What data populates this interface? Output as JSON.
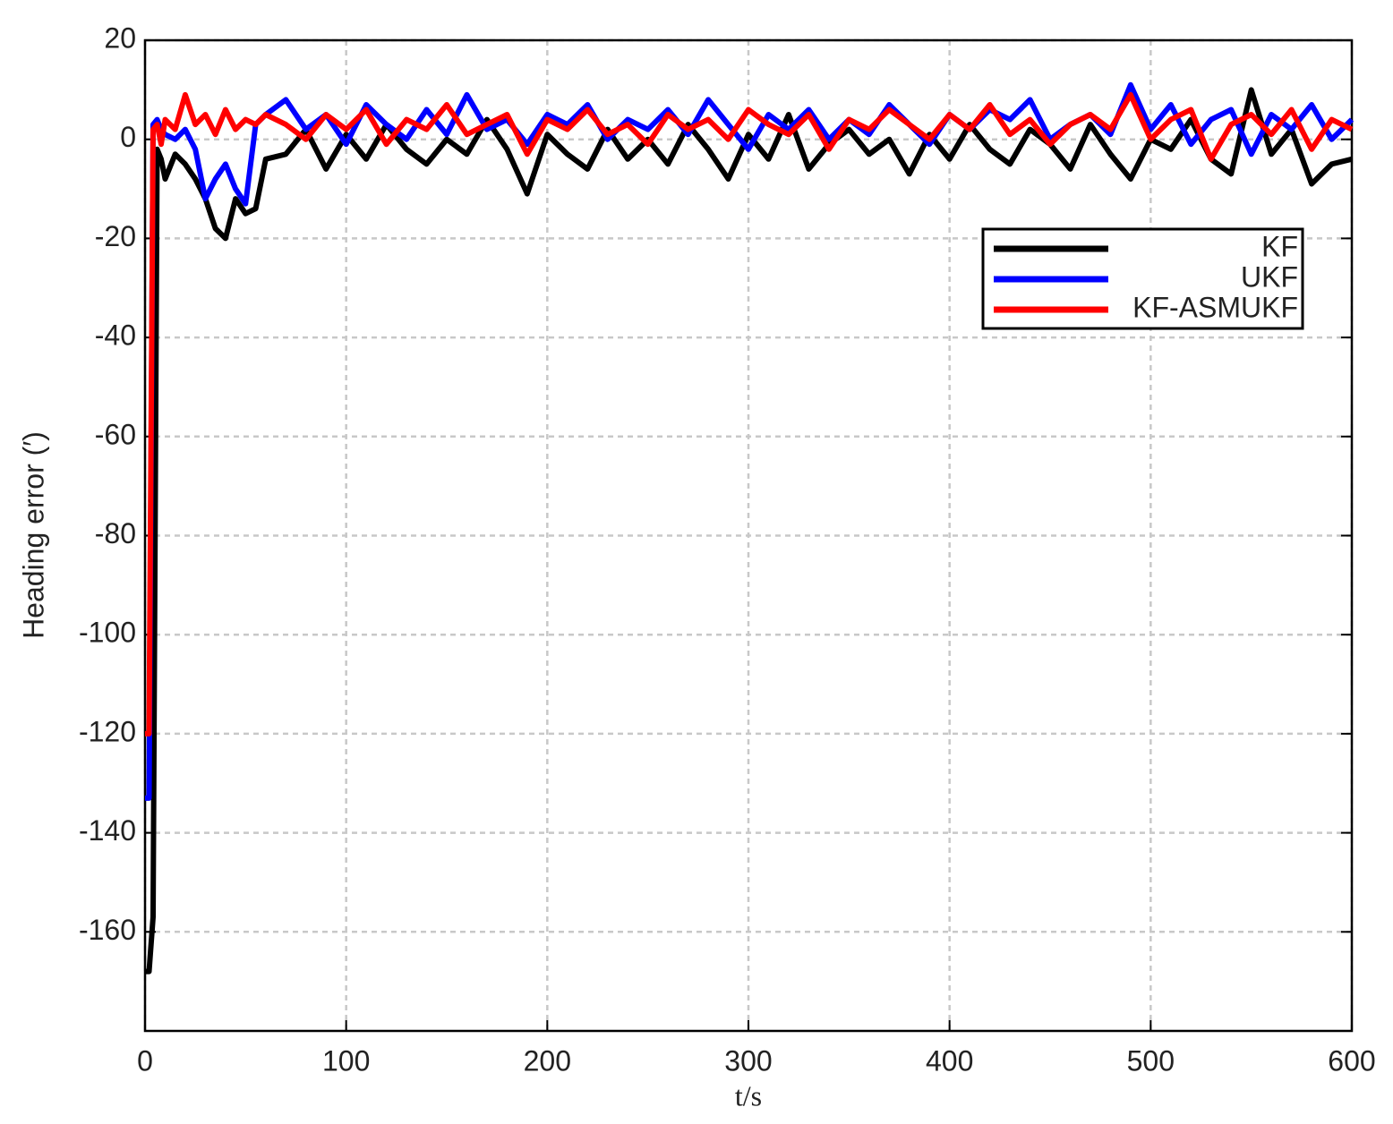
{
  "chart_data": {
    "type": "line",
    "x_label": "t/s",
    "y_label": "Heading error (′)",
    "x": [
      0,
      2,
      4,
      6,
      8,
      10,
      15,
      20,
      25,
      30,
      35,
      40,
      45,
      50,
      55,
      60,
      70,
      80,
      90,
      100,
      110,
      120,
      130,
      140,
      150,
      160,
      170,
      180,
      190,
      200,
      210,
      220,
      230,
      240,
      250,
      260,
      270,
      280,
      290,
      300,
      310,
      320,
      330,
      340,
      350,
      360,
      370,
      380,
      390,
      400,
      410,
      420,
      430,
      440,
      450,
      460,
      470,
      480,
      490,
      500,
      510,
      520,
      530,
      540,
      550,
      560,
      570,
      580,
      590,
      600
    ],
    "series": [
      {
        "name": "KF",
        "color": "#000000",
        "values": [
          -168,
          -168,
          -157,
          -2,
          -4,
          -8,
          -3,
          -5,
          -8,
          -12,
          -18,
          -20,
          -12,
          -15,
          -14,
          -4,
          -3,
          2,
          -6,
          1,
          -4,
          3,
          -2,
          -5,
          0,
          -3,
          4,
          -2,
          -11,
          1,
          -3,
          -6,
          2,
          -4,
          0,
          -5,
          3,
          -2,
          -8,
          1,
          -4,
          5,
          -6,
          -1,
          2,
          -3,
          0,
          -7,
          1,
          -4,
          3,
          -2,
          -5,
          2,
          -1,
          -6,
          3,
          -3,
          -8,
          0,
          -2,
          4,
          -4,
          -7,
          10,
          -3,
          2,
          -9,
          -5,
          -4
        ]
      },
      {
        "name": "UKF",
        "color": "#0000ff",
        "values": [
          -133,
          -133,
          3,
          4,
          2,
          1,
          0,
          2,
          -2,
          -12,
          -8,
          -5,
          -10,
          -13,
          3,
          5,
          8,
          2,
          5,
          -1,
          7,
          3,
          0,
          6,
          1,
          9,
          2,
          4,
          -1,
          5,
          3,
          7,
          0,
          4,
          2,
          6,
          1,
          8,
          3,
          -2,
          5,
          2,
          6,
          0,
          4,
          1,
          7,
          3,
          -1,
          5,
          2,
          6,
          4,
          8,
          0,
          3,
          5,
          1,
          11,
          2,
          7,
          -1,
          4,
          6,
          -3,
          5,
          2,
          7,
          0,
          4
        ]
      },
      {
        "name": "KF-ASMUKF",
        "color": "#ff0000",
        "values": [
          -120,
          -120,
          2,
          3,
          -1,
          4,
          2,
          9,
          3,
          5,
          1,
          6,
          2,
          4,
          3,
          5,
          3,
          0,
          5,
          2,
          6,
          -1,
          4,
          2,
          7,
          1,
          3,
          5,
          -3,
          4,
          2,
          6,
          1,
          3,
          -1,
          5,
          2,
          4,
          0,
          6,
          3,
          1,
          5,
          -2,
          4,
          2,
          6,
          3,
          0,
          5,
          2,
          7,
          1,
          4,
          -1,
          3,
          5,
          2,
          9,
          0,
          4,
          6,
          -4,
          3,
          5,
          1,
          6,
          -2,
          4,
          2
        ]
      }
    ],
    "xlim": [
      0,
      600
    ],
    "xticks": [
      0,
      100,
      200,
      300,
      400,
      500,
      600
    ],
    "ylim": [
      -180,
      20
    ],
    "yticks": [
      20,
      0,
      -20,
      -40,
      -60,
      -80,
      -100,
      -120,
      -140,
      -160
    ],
    "grid": true,
    "legend": "upper right"
  }
}
